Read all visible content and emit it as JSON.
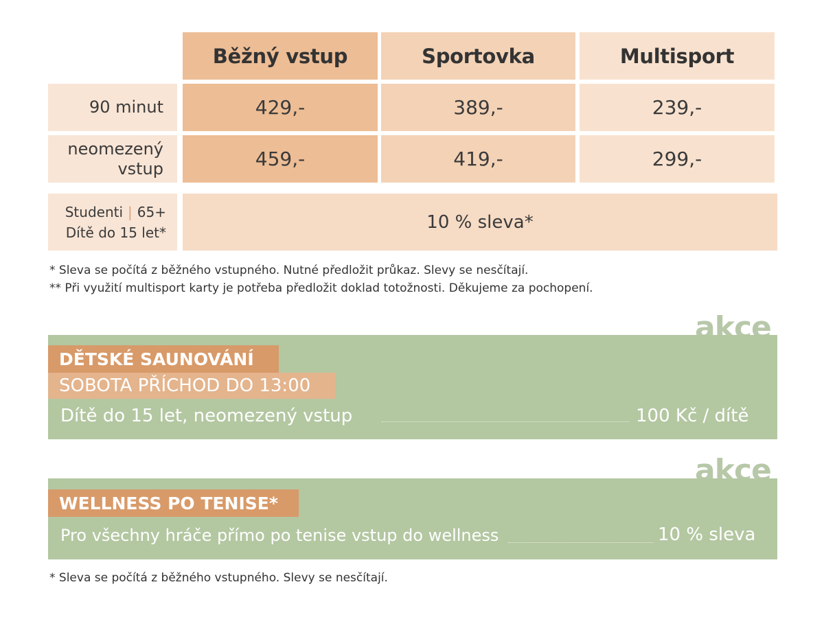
{
  "pricing": {
    "headers": [
      "Běžný vstup",
      "Sportovka",
      "Multisport"
    ],
    "rows": [
      {
        "label": "90 minut",
        "values": [
          "429,-",
          "389,-",
          "239,-"
        ]
      },
      {
        "label_line1": "neomezený",
        "label_line2": "vstup",
        "values": [
          "459,-",
          "419,-",
          "299,-"
        ]
      }
    ],
    "discount": {
      "label_line1_a": "Studenti",
      "label_line1_b": "65+",
      "label_line2": "Dítě do 15 let*",
      "value": "10 % sleva*"
    }
  },
  "notes": [
    "* Sleva se počítá z běžného vstupného. Nutné předložit průkaz. Slevy se nesčítají.",
    "** Při využití multisport karty je potřeba předložit doklad totožnosti. Děkujeme za pochopení."
  ],
  "promo1": {
    "badge": "akce",
    "title": "DĚTSKÉ SAUNOVÁNÍ",
    "subtitle": "SOBOTA PŘÍCHOD DO 13:00",
    "item": "Dítě do 15 let, neomezený vstup",
    "price": "100 Kč / dítě"
  },
  "promo2": {
    "badge": "akce",
    "title": "WELLNESS PO TENISE*",
    "item": "Pro všechny hráče přímo po tenise vstup do wellness",
    "price": "10 % sleva"
  },
  "footnote": "* Sleva se počítá z běžného vstupného. Slevy se nesčítají.",
  "colors": {
    "col1": "#edbd95",
    "col2": "#f3d2b6",
    "col3": "#f8e2cf",
    "label_bg": "#f8e5d6",
    "green": "#b3c7a1",
    "orange_tag": "#d89a69"
  }
}
